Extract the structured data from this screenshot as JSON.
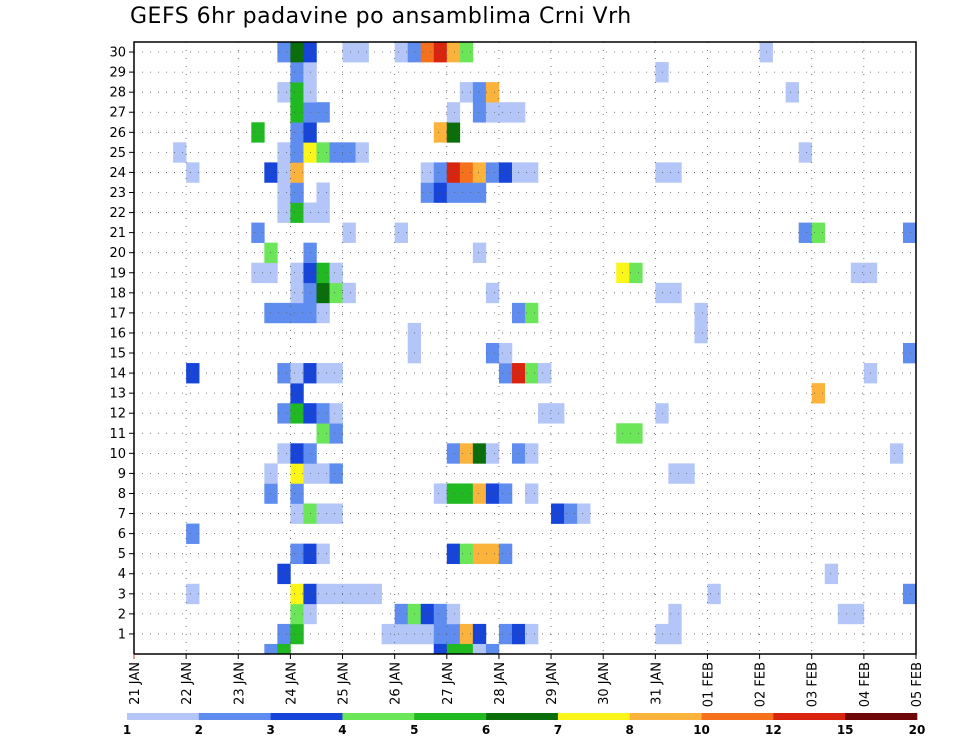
{
  "chart_data": {
    "type": "heatmap",
    "title": "GEFS 6hr padavine po ansamblima Crni Vrh",
    "ylabel": "",
    "xlabel": "",
    "y_members": [
      1,
      2,
      3,
      4,
      5,
      6,
      7,
      8,
      9,
      10,
      11,
      12,
      13,
      14,
      15,
      16,
      17,
      18,
      19,
      20,
      21,
      22,
      23,
      24,
      25,
      26,
      27,
      28,
      29,
      30
    ],
    "x_tick_labels": [
      "21 JAN",
      "22 JAN",
      "23 JAN",
      "24 JAN",
      "25 JAN",
      "26 JAN",
      "27 JAN",
      "28 JAN",
      "29 JAN",
      "30 JAN",
      "31 JAN",
      "01 FEB",
      "02 FEB",
      "03 FEB",
      "04 FEB",
      "05 FEB"
    ],
    "x_step_hours": 6,
    "x_steps": 60,
    "grid": true,
    "color_scale": {
      "colors": [
        "#b3c6f7",
        "#5f8cef",
        "#1744d9",
        "#6ce659",
        "#21b921",
        "#0a6e0a",
        "#fbf51a",
        "#fbb33c",
        "#f6711b",
        "#d9240f",
        "#6e0808"
      ],
      "tick_labels": [
        "1",
        "2",
        "3",
        "4",
        "5",
        "6",
        "7",
        "8",
        "10",
        "12",
        "15",
        "20"
      ]
    },
    "cells": [
      [
        1,
        11,
        2
      ],
      [
        1,
        12,
        5
      ],
      [
        1,
        19,
        1
      ],
      [
        1,
        20,
        1
      ],
      [
        1,
        21,
        1
      ],
      [
        1,
        22,
        1
      ],
      [
        1,
        23,
        2
      ],
      [
        1,
        24,
        2
      ],
      [
        1,
        25,
        8
      ],
      [
        1,
        26,
        3
      ],
      [
        1,
        28,
        2
      ],
      [
        1,
        29,
        3
      ],
      [
        1,
        30,
        1
      ],
      [
        1,
        40,
        1
      ],
      [
        1,
        41,
        1
      ],
      [
        2,
        12,
        4
      ],
      [
        2,
        13,
        1
      ],
      [
        2,
        20,
        2
      ],
      [
        2,
        21,
        4
      ],
      [
        2,
        22,
        3
      ],
      [
        2,
        23,
        2
      ],
      [
        2,
        24,
        1
      ],
      [
        2,
        41,
        1
      ],
      [
        2,
        54,
        1
      ],
      [
        2,
        55,
        1
      ],
      [
        3,
        4,
        1
      ],
      [
        3,
        12,
        7
      ],
      [
        3,
        13,
        3
      ],
      [
        3,
        14,
        1
      ],
      [
        3,
        15,
        1
      ],
      [
        3,
        16,
        1
      ],
      [
        3,
        17,
        1
      ],
      [
        3,
        18,
        1
      ],
      [
        3,
        44,
        1
      ],
      [
        3,
        59,
        2
      ],
      [
        4,
        11,
        3
      ],
      [
        4,
        53,
        1
      ],
      [
        5,
        12,
        2
      ],
      [
        5,
        13,
        3
      ],
      [
        5,
        14,
        1
      ],
      [
        5,
        24,
        3
      ],
      [
        5,
        25,
        4
      ],
      [
        5,
        26,
        8
      ],
      [
        5,
        27,
        8
      ],
      [
        5,
        28,
        2
      ],
      [
        6,
        4,
        2
      ],
      [
        7,
        12,
        1
      ],
      [
        7,
        13,
        4
      ],
      [
        7,
        14,
        1
      ],
      [
        7,
        15,
        1
      ],
      [
        7,
        32,
        3
      ],
      [
        7,
        33,
        2
      ],
      [
        7,
        34,
        1
      ],
      [
        8,
        10,
        2
      ],
      [
        8,
        12,
        2
      ],
      [
        8,
        23,
        1
      ],
      [
        8,
        24,
        5
      ],
      [
        8,
        25,
        5
      ],
      [
        8,
        26,
        8
      ],
      [
        8,
        27,
        3
      ],
      [
        8,
        28,
        2
      ],
      [
        8,
        30,
        1
      ],
      [
        9,
        10,
        1
      ],
      [
        9,
        12,
        7
      ],
      [
        9,
        13,
        1
      ],
      [
        9,
        14,
        1
      ],
      [
        9,
        15,
        2
      ],
      [
        9,
        41,
        1
      ],
      [
        9,
        42,
        1
      ],
      [
        10,
        11,
        1
      ],
      [
        10,
        12,
        3
      ],
      [
        10,
        13,
        2
      ],
      [
        10,
        24,
        2
      ],
      [
        10,
        25,
        8
      ],
      [
        10,
        26,
        6
      ],
      [
        10,
        27,
        1
      ],
      [
        10,
        29,
        2
      ],
      [
        10,
        30,
        1
      ],
      [
        10,
        58,
        1
      ],
      [
        11,
        14,
        4
      ],
      [
        11,
        15,
        2
      ],
      [
        11,
        37,
        4
      ],
      [
        11,
        38,
        4
      ],
      [
        12,
        11,
        2
      ],
      [
        12,
        12,
        5
      ],
      [
        12,
        13,
        3
      ],
      [
        12,
        14,
        2
      ],
      [
        12,
        15,
        1
      ],
      [
        12,
        31,
        1
      ],
      [
        12,
        32,
        1
      ],
      [
        12,
        40,
        1
      ],
      [
        13,
        12,
        3
      ],
      [
        13,
        52,
        8
      ],
      [
        14,
        4,
        3
      ],
      [
        14,
        11,
        2
      ],
      [
        14,
        12,
        1
      ],
      [
        14,
        13,
        3
      ],
      [
        14,
        14,
        1
      ],
      [
        14,
        15,
        1
      ],
      [
        14,
        28,
        2
      ],
      [
        14,
        29,
        10
      ],
      [
        14,
        30,
        4
      ],
      [
        14,
        31,
        1
      ],
      [
        14,
        56,
        1
      ],
      [
        15,
        21,
        1
      ],
      [
        15,
        27,
        2
      ],
      [
        15,
        28,
        1
      ],
      [
        15,
        59,
        2
      ],
      [
        16,
        21,
        1
      ],
      [
        16,
        43,
        1
      ],
      [
        17,
        10,
        2
      ],
      [
        17,
        11,
        2
      ],
      [
        17,
        12,
        2
      ],
      [
        17,
        13,
        2
      ],
      [
        17,
        14,
        1
      ],
      [
        17,
        29,
        2
      ],
      [
        17,
        30,
        4
      ],
      [
        17,
        43,
        1
      ],
      [
        18,
        12,
        1
      ],
      [
        18,
        13,
        2
      ],
      [
        18,
        14,
        6
      ],
      [
        18,
        15,
        4
      ],
      [
        18,
        16,
        1
      ],
      [
        18,
        27,
        1
      ],
      [
        18,
        40,
        1
      ],
      [
        18,
        41,
        1
      ],
      [
        19,
        9,
        1
      ],
      [
        19,
        10,
        1
      ],
      [
        19,
        12,
        1
      ],
      [
        19,
        13,
        3
      ],
      [
        19,
        14,
        5
      ],
      [
        19,
        15,
        1
      ],
      [
        19,
        37,
        7
      ],
      [
        19,
        38,
        4
      ],
      [
        19,
        55,
        1
      ],
      [
        19,
        56,
        1
      ],
      [
        20,
        10,
        4
      ],
      [
        20,
        13,
        2
      ],
      [
        20,
        26,
        1
      ],
      [
        21,
        9,
        2
      ],
      [
        21,
        16,
        1
      ],
      [
        21,
        20,
        1
      ],
      [
        21,
        51,
        2
      ],
      [
        21,
        52,
        4
      ],
      [
        21,
        59,
        2
      ],
      [
        22,
        11,
        1
      ],
      [
        22,
        12,
        5
      ],
      [
        22,
        13,
        1
      ],
      [
        22,
        14,
        1
      ],
      [
        23,
        11,
        1
      ],
      [
        23,
        12,
        2
      ],
      [
        23,
        14,
        1
      ],
      [
        23,
        22,
        2
      ],
      [
        23,
        23,
        3
      ],
      [
        23,
        24,
        2
      ],
      [
        23,
        25,
        2
      ],
      [
        23,
        26,
        2
      ],
      [
        24,
        4,
        1
      ],
      [
        24,
        10,
        3
      ],
      [
        24,
        11,
        1
      ],
      [
        24,
        12,
        8
      ],
      [
        24,
        22,
        1
      ],
      [
        24,
        23,
        2
      ],
      [
        24,
        24,
        10
      ],
      [
        24,
        25,
        9
      ],
      [
        24,
        26,
        8
      ],
      [
        24,
        27,
        2
      ],
      [
        24,
        28,
        3
      ],
      [
        24,
        29,
        1
      ],
      [
        24,
        30,
        1
      ],
      [
        24,
        40,
        1
      ],
      [
        24,
        41,
        1
      ],
      [
        25,
        3,
        1
      ],
      [
        25,
        11,
        1
      ],
      [
        25,
        12,
        2
      ],
      [
        25,
        13,
        7
      ],
      [
        25,
        14,
        4
      ],
      [
        25,
        15,
        2
      ],
      [
        25,
        16,
        2
      ],
      [
        25,
        17,
        1
      ],
      [
        25,
        51,
        1
      ],
      [
        26,
        9,
        5
      ],
      [
        26,
        12,
        2
      ],
      [
        26,
        13,
        3
      ],
      [
        26,
        23,
        8
      ],
      [
        26,
        24,
        6
      ],
      [
        27,
        12,
        5
      ],
      [
        27,
        13,
        2
      ],
      [
        27,
        14,
        2
      ],
      [
        27,
        24,
        1
      ],
      [
        27,
        26,
        2
      ],
      [
        27,
        27,
        1
      ],
      [
        27,
        28,
        1
      ],
      [
        27,
        29,
        1
      ],
      [
        28,
        11,
        1
      ],
      [
        28,
        12,
        5
      ],
      [
        28,
        13,
        1
      ],
      [
        28,
        25,
        1
      ],
      [
        28,
        26,
        2
      ],
      [
        28,
        27,
        8
      ],
      [
        28,
        50,
        1
      ],
      [
        29,
        12,
        2
      ],
      [
        29,
        13,
        1
      ],
      [
        29,
        40,
        1
      ],
      [
        30,
        11,
        2
      ],
      [
        30,
        12,
        6
      ],
      [
        30,
        13,
        3
      ],
      [
        30,
        16,
        1
      ],
      [
        30,
        17,
        1
      ],
      [
        30,
        20,
        1
      ],
      [
        30,
        21,
        2
      ],
      [
        30,
        22,
        9
      ],
      [
        30,
        23,
        10
      ],
      [
        30,
        24,
        8
      ],
      [
        30,
        25,
        4
      ],
      [
        30,
        48,
        1
      ],
      [
        0,
        10,
        2
      ],
      [
        0,
        11,
        5
      ],
      [
        0,
        23,
        3
      ],
      [
        0,
        24,
        5
      ],
      [
        0,
        25,
        5
      ],
      [
        0,
        26,
        1
      ],
      [
        0,
        27,
        2
      ]
    ]
  }
}
